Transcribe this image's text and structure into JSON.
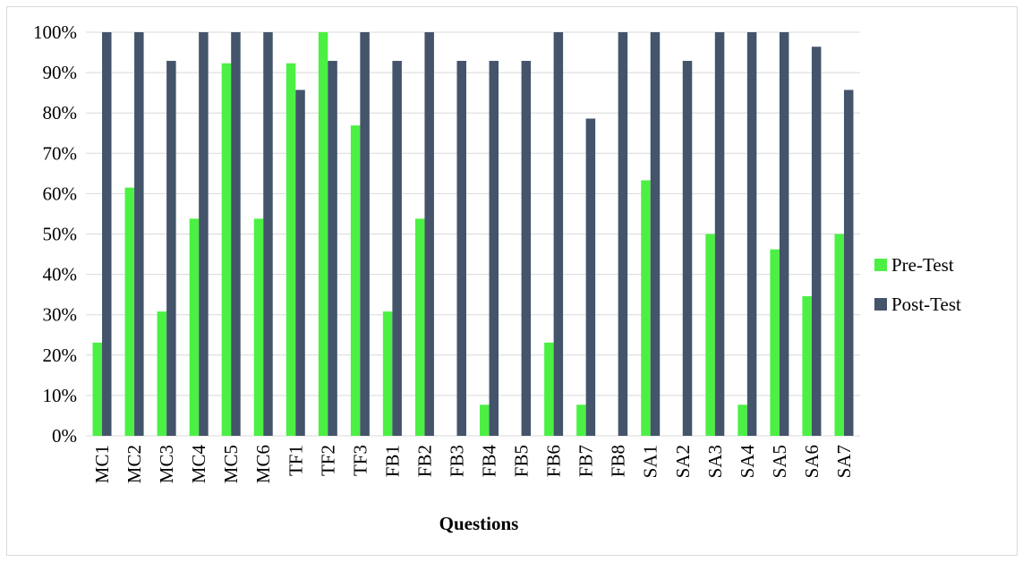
{
  "chart_data": {
    "type": "bar",
    "title": "",
    "xlabel": "Questions",
    "ylabel": "",
    "ylim": [
      0,
      100
    ],
    "yticks": [
      "0%",
      "10%",
      "20%",
      "30%",
      "40%",
      "50%",
      "60%",
      "70%",
      "80%",
      "90%",
      "100%"
    ],
    "grid": true,
    "legend_position": "right",
    "categories": [
      "MC1",
      "MC2",
      "MC3",
      "MC4",
      "MC5",
      "MC6",
      "TF1",
      "TF2",
      "TF3",
      "FB1",
      "FB2",
      "FB3",
      "FB4",
      "FB5",
      "FB6",
      "FB7",
      "FB8",
      "SA1",
      "SA2",
      "SA3",
      "SA4",
      "SA5",
      "SA6",
      "SA7"
    ],
    "series": [
      {
        "name": "Pre-Test",
        "color": "#4cf044",
        "values": [
          23.1,
          61.5,
          30.8,
          53.8,
          92.3,
          53.8,
          92.3,
          100,
          76.9,
          30.8,
          53.8,
          0,
          7.7,
          0,
          23.1,
          7.7,
          0,
          63.3,
          0,
          50,
          7.7,
          46.2,
          34.6,
          50
        ]
      },
      {
        "name": "Post-Test",
        "color": "#44546a",
        "values": [
          100,
          100,
          92.9,
          100,
          100,
          100,
          85.7,
          92.9,
          100,
          92.9,
          100,
          92.9,
          92.9,
          92.9,
          100,
          78.6,
          100,
          100,
          92.9,
          100,
          100,
          100,
          96.4,
          85.7
        ]
      }
    ]
  }
}
